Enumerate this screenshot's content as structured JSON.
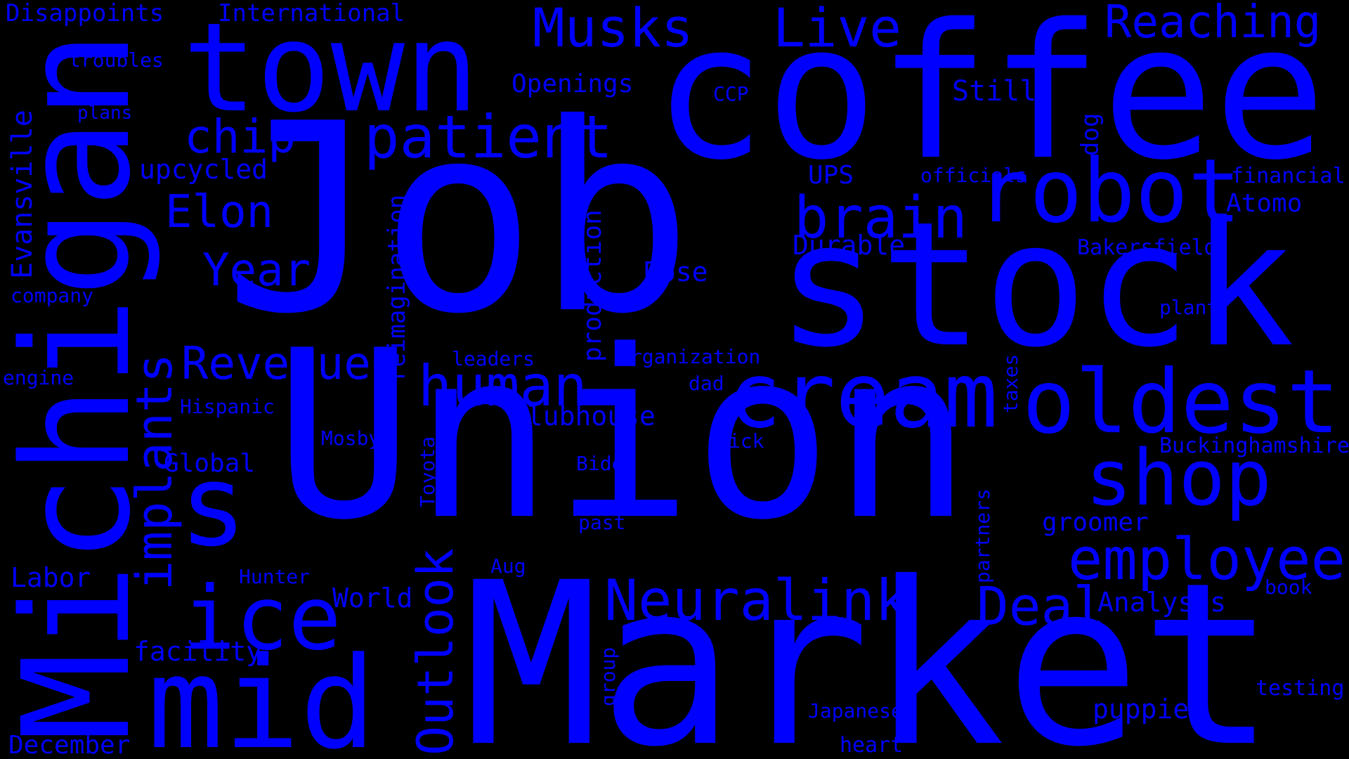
{
  "words": {
    "job": "Job",
    "union": "Union",
    "market": "Market",
    "coffee": "coffee",
    "stock": "stock",
    "michigan": "Michigan",
    "town": "town",
    "robot": "robot",
    "cream": "cream",
    "oldest": "oldest",
    "ice": "ice",
    "mid": "mid",
    "shop": "shop",
    "s": "s",
    "human": "human",
    "patient": "patient",
    "employee": "employee",
    "neuralink": "Neuralink",
    "brain": "brain",
    "implants": "implants",
    "outlook": "Outlook",
    "deal": "Deal",
    "musks": "Musks",
    "live": "Live",
    "reaching": "Reaching",
    "chip": "chip",
    "elon": "Elon",
    "year": "Year",
    "revenue": "Revenue",
    "disappoints": "Disappoints",
    "international": "International",
    "troubles": "troubles",
    "plans": "plans",
    "openings": "Openings",
    "ccp": "CCP",
    "still": "Still",
    "dog": "dog",
    "upcycled": "upcycled",
    "ups": "UPS",
    "officials": "officials",
    "financial": "financial",
    "atomo": "Atomo",
    "evansville": "Evansville",
    "reimagination": "reimagination",
    "production": "production",
    "durable": "Durable",
    "bakersfield": "Bakersfield",
    "rose": "Rose",
    "plant": "plant",
    "company": "company",
    "leaders": "leaders",
    "organization": "organization",
    "engine": "engine",
    "dad": "dad",
    "taxes": "taxes",
    "hispanic": "Hispanic",
    "clubhouse": "clubhouse",
    "mosby": "Mosby",
    "nick": "Nick",
    "buckinghamshire": "Buckinghamshire",
    "global": "Global",
    "toyota": "Toyota",
    "biden": "Biden",
    "partners": "partners",
    "past": "past",
    "groomer": "groomer",
    "labor": "Labor",
    "hunter": "Hunter",
    "aug": "Aug",
    "world": "World",
    "analysis": "Analysis",
    "book": "book",
    "facility": "facility",
    "group": "group",
    "testing": "testing",
    "japanese": "Japanese",
    "puppies": "puppies",
    "december": "December",
    "heart": "heart"
  },
  "colors": {
    "background": "#000000",
    "text": "#0000FF"
  }
}
